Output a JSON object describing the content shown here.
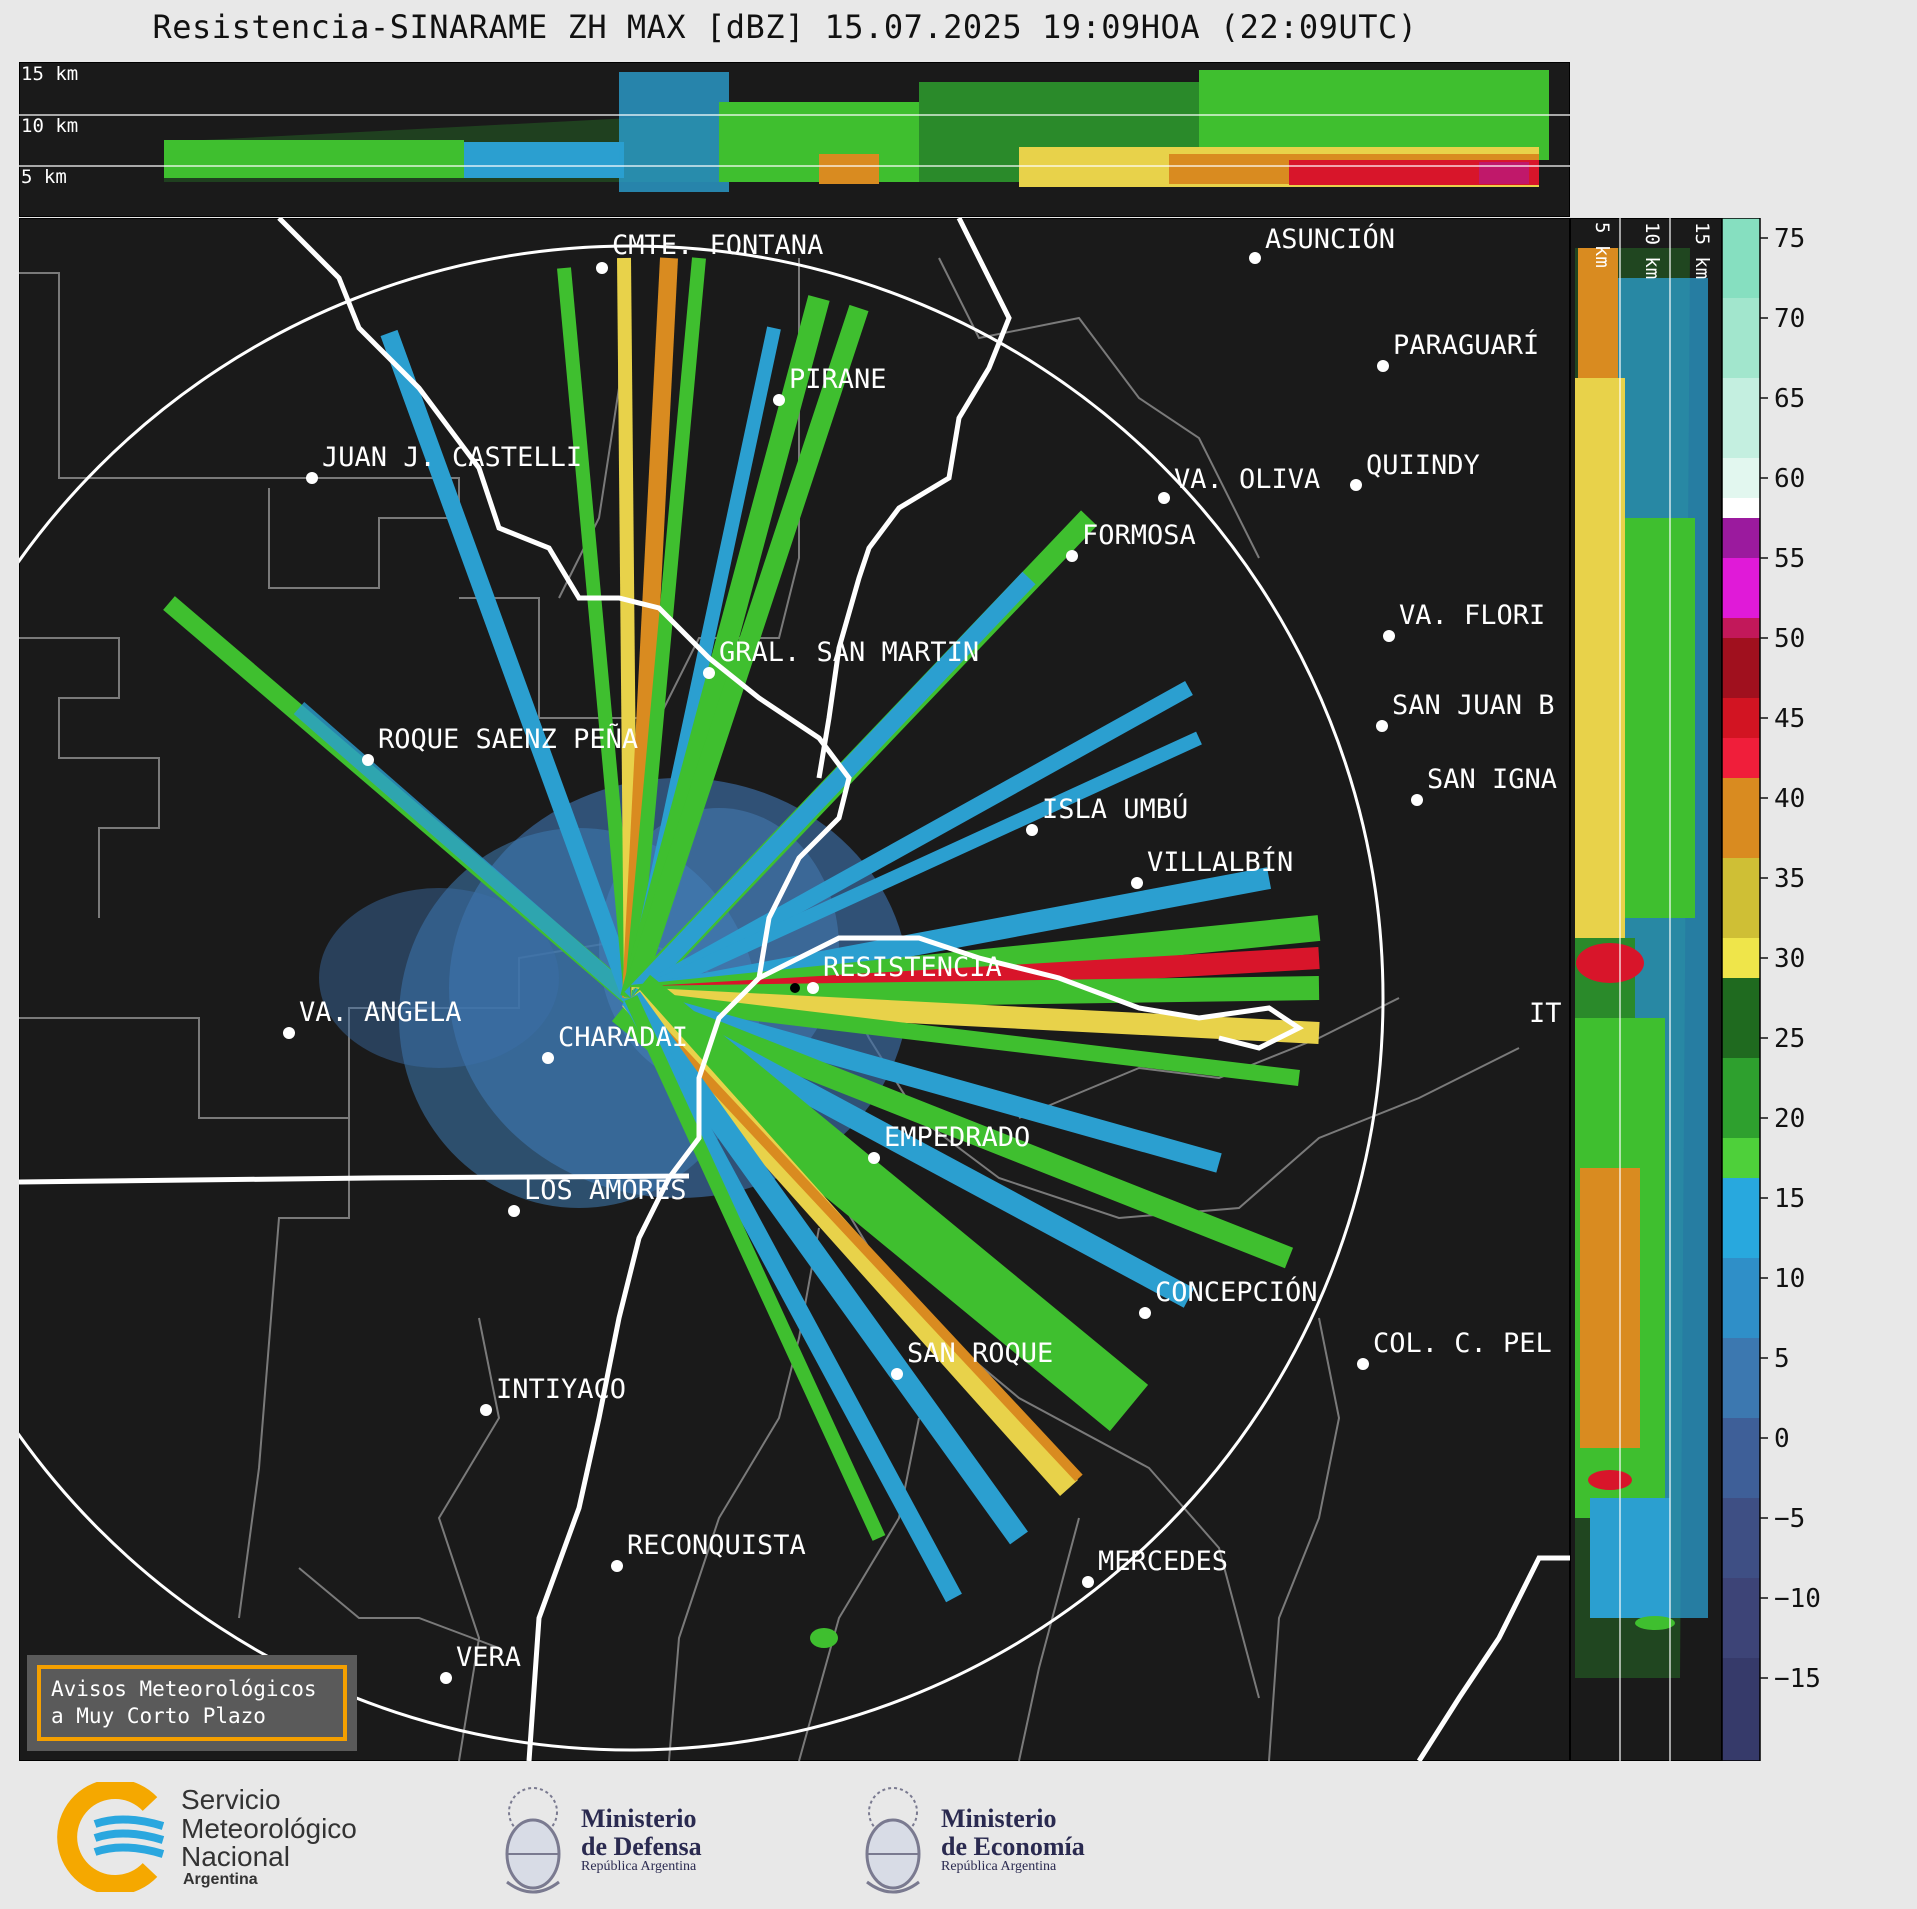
{
  "title": "Resistencia-SINARAME ZH MAX [dBZ] 15.07.2025 19:09HOA (22:09UTC)",
  "top_panel": {
    "height_labels": [
      "15 km",
      "10 km",
      "5 km"
    ]
  },
  "side_panel": {
    "height_labels": [
      "5 km",
      "10 km",
      "15 km"
    ]
  },
  "radar": {
    "name": "RESISTENCIA"
  },
  "cities": [
    {
      "name": "CMTE. FONTANA"
    },
    {
      "name": "ASUNCIÓN"
    },
    {
      "name": "PARAGUARÍ"
    },
    {
      "name": "PIRANE"
    },
    {
      "name": "JUAN J. CASTELLI"
    },
    {
      "name": "VA. OLIVA"
    },
    {
      "name": "QUIINDY"
    },
    {
      "name": "FORMOSA"
    },
    {
      "name": "VA. FLORI"
    },
    {
      "name": "GRAL. SAN MARTIN"
    },
    {
      "name": "SAN JUAN B"
    },
    {
      "name": "ROQUE SAENZ PEÑA"
    },
    {
      "name": "SAN IGNA"
    },
    {
      "name": "ISLA UMBÚ"
    },
    {
      "name": "VILLALBÍN"
    },
    {
      "name": "RESISTENCIA"
    },
    {
      "name": "VA. ANGELA"
    },
    {
      "name": "CHARADAI"
    },
    {
      "name": "IT"
    },
    {
      "name": "EMPEDRADO"
    },
    {
      "name": "LOS AMORES"
    },
    {
      "name": "CONCEPCIÓN"
    },
    {
      "name": "SAN ROQUE"
    },
    {
      "name": "COL. C. PEL"
    },
    {
      "name": "INTIYACO"
    },
    {
      "name": "RECONQUISTA"
    },
    {
      "name": "MERCEDES"
    },
    {
      "name": "VERA"
    }
  ],
  "warning_box": {
    "line1": "Avisos Meteorológicos",
    "line2": "a Muy Corto Plazo",
    "border_color": "#f5a000"
  },
  "colorbar": {
    "ticks": [
      "75",
      "70",
      "65",
      "60",
      "55",
      "50",
      "45",
      "40",
      "35",
      "30",
      "25",
      "20",
      "15",
      "10",
      "5",
      "0",
      "−5",
      "−10",
      "−15"
    ]
  },
  "footer": {
    "smn": {
      "line1": "Servicio",
      "line2": "Meteorológico",
      "line3": "Nacional",
      "line4": "Argentina"
    },
    "defensa": {
      "line1": "Ministerio",
      "line2": "de Defensa",
      "line3": "República Argentina"
    },
    "economia": {
      "line1": "Ministerio",
      "line2": "de Economía",
      "line3": "República Argentina"
    }
  },
  "colors": {
    "background_map": "#1a1a1a",
    "range_ring": "#ffffff",
    "rivers": "#ffffff",
    "borders": "#7a7a7a",
    "smn_blue": "#2aa7df",
    "smn_orange": "#f5a800"
  }
}
